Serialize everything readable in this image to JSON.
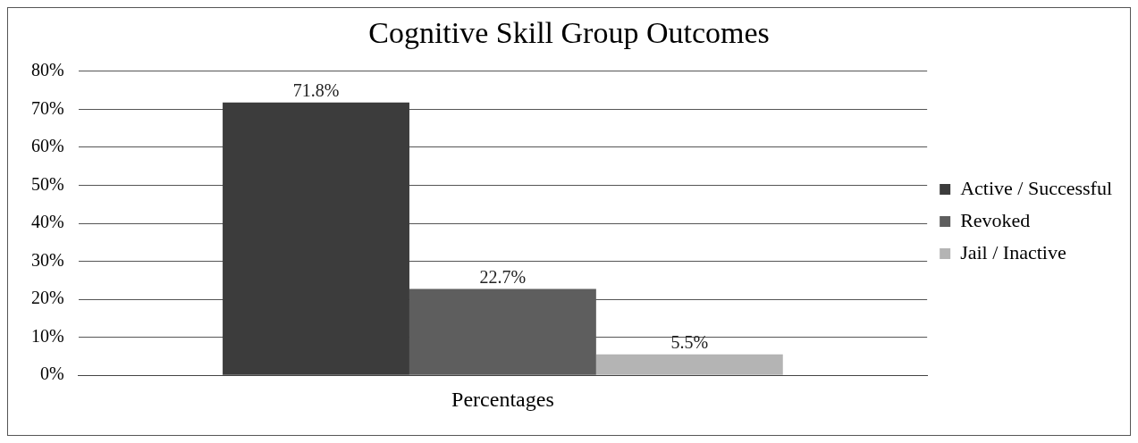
{
  "chart_data": {
    "type": "bar",
    "title": "Cognitive Skill Group Outcomes",
    "categories": [
      "Percentages"
    ],
    "series": [
      {
        "name": "Active / Successful",
        "color": "#3c3c3c",
        "values": [
          71.8
        ],
        "value_labels": [
          "71.8%"
        ]
      },
      {
        "name": "Revoked",
        "color": "#5e5e5e",
        "values": [
          22.7
        ],
        "value_labels": [
          "22.7%"
        ]
      },
      {
        "name": "Jail / Inactive",
        "color": "#b4b4b4",
        "values": [
          5.5
        ],
        "value_labels": [
          "5.5%"
        ]
      }
    ],
    "ylim": [
      0,
      80
    ],
    "yticks": [
      {
        "value": 0,
        "label": "0%"
      },
      {
        "value": 10,
        "label": "10%"
      },
      {
        "value": 20,
        "label": "20%"
      },
      {
        "value": 30,
        "label": "30%"
      },
      {
        "value": 40,
        "label": "40%"
      },
      {
        "value": 50,
        "label": "50%"
      },
      {
        "value": 60,
        "label": "60%"
      },
      {
        "value": 70,
        "label": "70%"
      },
      {
        "value": 80,
        "label": "80%"
      }
    ],
    "grid": "y",
    "legend": "right"
  }
}
